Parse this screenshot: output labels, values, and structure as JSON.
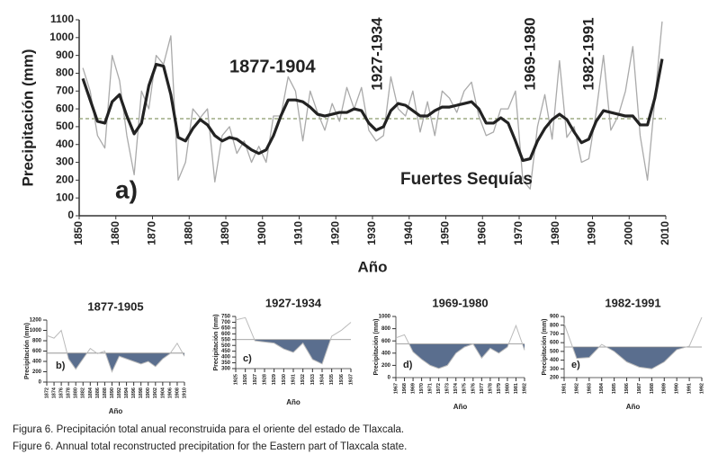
{
  "chart_data": [
    {
      "type": "line",
      "x_label": "Año",
      "y_label": "Precipitación (mm)",
      "annotations": [
        "1877-1904",
        "1927-1934",
        "1969-1980",
        "1982-1991",
        "Fuertes Sequías",
        "a)"
      ],
      "xlim": [
        1850,
        2010
      ],
      "ylim": [
        0,
        1100
      ],
      "xticks": [
        1850,
        1860,
        1870,
        1880,
        1890,
        1900,
        1910,
        1920,
        1930,
        1940,
        1950,
        1960,
        1970,
        1980,
        1990,
        2000,
        2010
      ],
      "yticks": [
        0,
        100,
        200,
        300,
        400,
        500,
        600,
        700,
        800,
        900,
        1000,
        1100
      ],
      "reference_line": 545,
      "x": [
        1851,
        1853,
        1855,
        1857,
        1859,
        1861,
        1863,
        1865,
        1867,
        1869,
        1871,
        1873,
        1875,
        1877,
        1879,
        1881,
        1883,
        1885,
        1887,
        1889,
        1891,
        1893,
        1895,
        1897,
        1899,
        1901,
        1903,
        1905,
        1907,
        1909,
        1911,
        1913,
        1915,
        1917,
        1919,
        1921,
        1923,
        1925,
        1927,
        1929,
        1931,
        1933,
        1935,
        1937,
        1939,
        1941,
        1943,
        1945,
        1947,
        1949,
        1951,
        1953,
        1955,
        1957,
        1959,
        1961,
        1963,
        1965,
        1967,
        1969,
        1971,
        1973,
        1975,
        1977,
        1979,
        1981,
        1983,
        1985,
        1987,
        1989,
        1991,
        1993,
        1995,
        1997,
        1999,
        2001,
        2003,
        2005,
        2007,
        2009
      ],
      "series": [
        {
          "color": "#aaaaaa",
          "values": [
            830,
            700,
            450,
            380,
            900,
            760,
            450,
            230,
            700,
            600,
            900,
            850,
            1010,
            200,
            300,
            600,
            550,
            600,
            190,
            450,
            500,
            350,
            420,
            300,
            390,
            300,
            560,
            560,
            780,
            700,
            420,
            700,
            580,
            480,
            630,
            530,
            720,
            600,
            720,
            480,
            420,
            450,
            780,
            600,
            560,
            700,
            470,
            640,
            450,
            700,
            660,
            580,
            700,
            750,
            560,
            450,
            470,
            600,
            600,
            700,
            200,
            150,
            500,
            680,
            430,
            870,
            440,
            500,
            300,
            320,
            580,
            900,
            480,
            560,
            700,
            950,
            450,
            200,
            650,
            1090
          ]
        },
        {
          "color": "#222222",
          "values": [
            770,
            650,
            530,
            520,
            640,
            680,
            560,
            460,
            520,
            730,
            850,
            840,
            680,
            440,
            420,
            490,
            540,
            510,
            450,
            420,
            440,
            430,
            400,
            370,
            350,
            370,
            450,
            560,
            650,
            650,
            640,
            610,
            570,
            560,
            570,
            580,
            580,
            600,
            590,
            520,
            480,
            500,
            590,
            630,
            620,
            590,
            560,
            560,
            590,
            610,
            610,
            620,
            630,
            640,
            600,
            520,
            520,
            550,
            520,
            420,
            310,
            320,
            420,
            490,
            540,
            570,
            540,
            470,
            410,
            430,
            530,
            590,
            580,
            570,
            560,
            560,
            510,
            510,
            660,
            880
          ]
        }
      ]
    },
    {
      "type": "area-deficit",
      "title": "1877-1905",
      "x_label": "Año",
      "y_label": "Precipitación (mm)",
      "annotations": [
        "b)"
      ],
      "xlim": [
        1872,
        1910
      ],
      "ylim": [
        0,
        1200
      ],
      "xticks": [
        1872,
        1874,
        1876,
        1878,
        1880,
        1882,
        1884,
        1886,
        1888,
        1890,
        1892,
        1894,
        1896,
        1898,
        1900,
        1902,
        1904,
        1906,
        1908,
        1910
      ],
      "yticks": [
        0,
        200,
        400,
        600,
        800,
        1000,
        1200
      ],
      "reference_line": 560,
      "x": [
        1872,
        1874,
        1876,
        1878,
        1880,
        1882,
        1884,
        1886,
        1888,
        1890,
        1892,
        1894,
        1896,
        1898,
        1900,
        1902,
        1904,
        1906,
        1908,
        1910
      ],
      "series": [
        {
          "color": "#bbbbbb",
          "values": [
            900,
            850,
            1000,
            450,
            250,
            450,
            650,
            550,
            600,
            200,
            500,
            450,
            400,
            350,
            400,
            300,
            450,
            550,
            750,
            500
          ]
        }
      ]
    },
    {
      "type": "area-deficit",
      "title": "1927-1934",
      "x_label": "Año",
      "y_label": "Precipitación (mm)",
      "annotations": [
        "c)"
      ],
      "xlim": [
        1925,
        1937
      ],
      "ylim": [
        300,
        750
      ],
      "xticks": [
        1925,
        1926,
        1927,
        1928,
        1929,
        1930,
        1931,
        1932,
        1933,
        1934,
        1935,
        1936,
        1937
      ],
      "yticks": [
        300,
        350,
        400,
        450,
        500,
        550,
        600,
        650,
        700,
        750
      ],
      "reference_line": 550,
      "x": [
        1925,
        1926,
        1927,
        1928,
        1929,
        1930,
        1931,
        1932,
        1933,
        1934,
        1935,
        1936,
        1937
      ],
      "series": [
        {
          "color": "#bbbbbb",
          "values": [
            720,
            740,
            540,
            530,
            520,
            470,
            440,
            520,
            380,
            340,
            580,
            630,
            700
          ]
        }
      ]
    },
    {
      "type": "area-deficit",
      "title": "1969-1980",
      "x_label": "Año",
      "y_label": "Precipitación (mm)",
      "annotations": [
        "d)"
      ],
      "xlim": [
        1967,
        1982
      ],
      "ylim": [
        0,
        1000
      ],
      "xticks": [
        1967,
        1968,
        1969,
        1970,
        1971,
        1972,
        1973,
        1974,
        1975,
        1976,
        1977,
        1978,
        1979,
        1980,
        1981,
        1982
      ],
      "yticks": [
        0,
        200,
        400,
        600,
        800,
        1000
      ],
      "reference_line": 550,
      "x": [
        1967,
        1968,
        1969,
        1970,
        1971,
        1972,
        1973,
        1974,
        1975,
        1976,
        1977,
        1978,
        1979,
        1980,
        1981,
        1982
      ],
      "series": [
        {
          "color": "#bbbbbb",
          "values": [
            650,
            700,
            420,
            300,
            200,
            150,
            200,
            400,
            500,
            550,
            320,
            480,
            400,
            500,
            850,
            450
          ]
        }
      ]
    },
    {
      "type": "area-deficit",
      "title": "1982-1991",
      "x_label": "Año",
      "y_label": "Precipitación (mm)",
      "annotations": [
        "e)"
      ],
      "xlim": [
        1981,
        1992
      ],
      "ylim": [
        200,
        900
      ],
      "xticks": [
        1981,
        1982,
        1983,
        1984,
        1985,
        1986,
        1987,
        1988,
        1989,
        1990,
        1991,
        1992
      ],
      "yticks": [
        200,
        300,
        400,
        500,
        600,
        700,
        800,
        900
      ],
      "reference_line": 550,
      "x": [
        1981,
        1982,
        1983,
        1984,
        1985,
        1986,
        1987,
        1988,
        1989,
        1990,
        1991,
        1992
      ],
      "series": [
        {
          "color": "#bbbbbb",
          "values": [
            820,
            420,
            430,
            580,
            500,
            380,
            320,
            300,
            380,
            520,
            560,
            890
          ]
        }
      ]
    }
  ],
  "caption": [
    "Figura 6. Precipitación total anual reconstruida para el oriente del estado de Tlaxcala.",
    "Figure 6. Annual total reconstructed precipitation for the Eastern part of Tlaxcala state."
  ]
}
